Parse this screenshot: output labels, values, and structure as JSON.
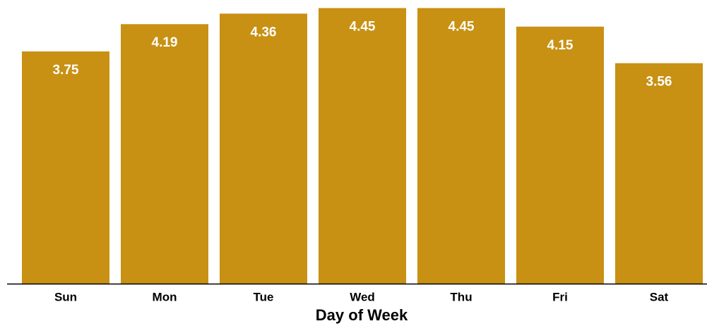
{
  "chart_data": {
    "type": "bar",
    "x_label": "Day of Week",
    "categories": [
      "Sun",
      "Mon",
      "Tue",
      "Wed",
      "Thu",
      "Fri",
      "Sat"
    ],
    "values": [
      3.75,
      4.19,
      4.36,
      4.45,
      4.45,
      4.15,
      3.56
    ],
    "color": "#c89114",
    "ylim": [
      0,
      4.58
    ]
  }
}
